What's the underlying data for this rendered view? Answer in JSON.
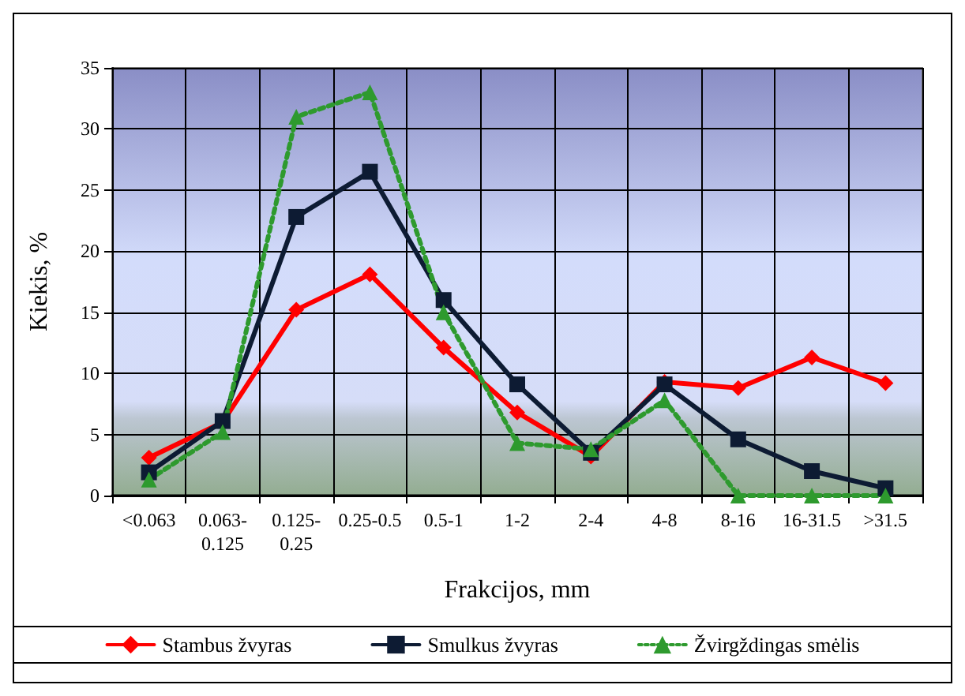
{
  "chart_data": {
    "type": "line",
    "xlabel": "Frakcijos, mm",
    "ylabel": "Kiekis, %",
    "categories": [
      "<0.063",
      "0.063-\n0.125",
      "0.125-\n0.25",
      "0.25-0.5",
      "0.5-1",
      "1-2",
      "2-4",
      "4-8",
      "8-16",
      "16-31.5",
      ">31.5"
    ],
    "series": [
      {
        "name": "Stambus žvyras",
        "color": "#ff0000",
        "marker": "diamond",
        "line_style": "solid",
        "values": [
          3.1,
          6.0,
          15.2,
          18.1,
          12.1,
          6.8,
          3.2,
          9.3,
          8.8,
          11.3,
          9.2
        ]
      },
      {
        "name": "Smulkus žvyras",
        "color": "#0d1b33",
        "marker": "square",
        "line_style": "solid",
        "values": [
          1.9,
          6.1,
          22.8,
          26.5,
          16.0,
          9.1,
          3.5,
          9.1,
          4.6,
          2.0,
          0.6
        ]
      },
      {
        "name": "Žvirgždingas smėlis",
        "color": "#2e9a2e",
        "marker": "triangle",
        "line_style": "dotted",
        "values": [
          1.3,
          5.2,
          31.0,
          33.0,
          15.0,
          4.3,
          3.8,
          7.8,
          0,
          0,
          0
        ]
      }
    ],
    "ylim": [
      0,
      35
    ],
    "yticks": [
      0,
      5,
      10,
      15,
      20,
      25,
      30,
      35
    ],
    "grid": true,
    "legend": "bottom"
  }
}
